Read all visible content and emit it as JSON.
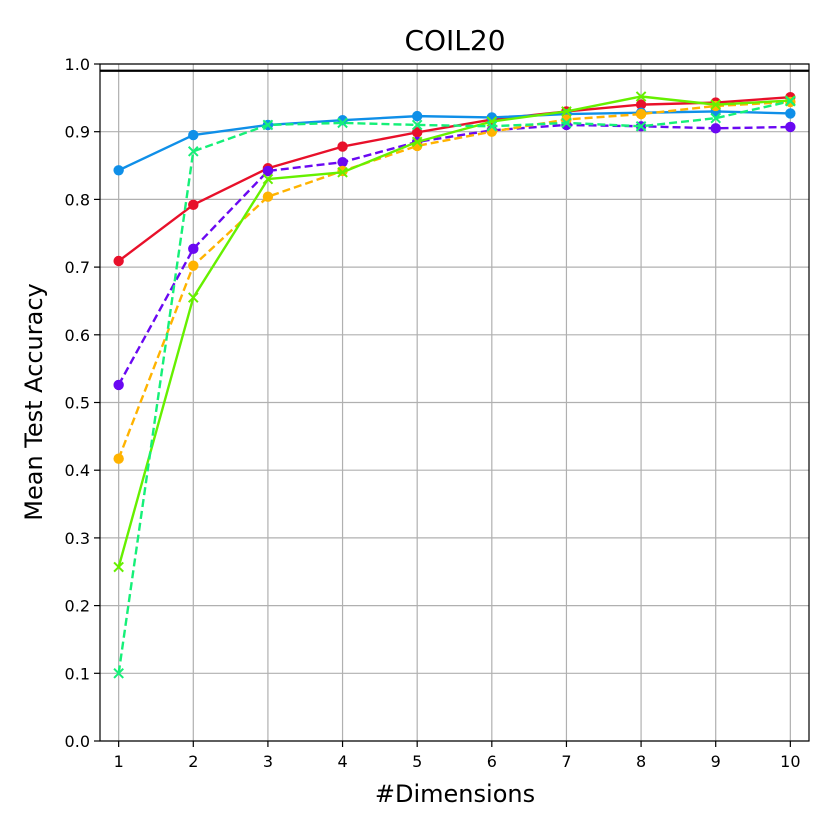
{
  "chart_data": {
    "type": "line",
    "title": "COIL20",
    "xlabel": "#Dimensions",
    "ylabel": "Mean Test Accuracy",
    "x": [
      1,
      2,
      3,
      4,
      5,
      6,
      7,
      8,
      9,
      10
    ],
    "xticks": [
      "1",
      "2",
      "3",
      "4",
      "5",
      "6",
      "7",
      "8",
      "9",
      "10"
    ],
    "yticks": [
      "0.0",
      "0.1",
      "0.2",
      "0.3",
      "0.4",
      "0.5",
      "0.6",
      "0.7",
      "0.8",
      "0.9",
      "1.0"
    ],
    "xlim": [
      0.75,
      10.25
    ],
    "ylim": [
      0.0,
      1.0
    ],
    "grid": true,
    "reference_line": {
      "y": 0.99,
      "color": "#000000"
    },
    "series": [
      {
        "color": "#e8102a",
        "style": "solid",
        "marker": "circle",
        "values": [
          0.709,
          0.792,
          0.846,
          0.878,
          0.899,
          0.918,
          0.93,
          0.94,
          0.943,
          0.951
        ]
      },
      {
        "color": "#0f8fe8",
        "style": "solid",
        "marker": "circle",
        "values": [
          0.843,
          0.895,
          0.91,
          0.917,
          0.923,
          0.921,
          0.926,
          0.928,
          0.93,
          0.927
        ]
      },
      {
        "color": "#6a08f2",
        "style": "dashed",
        "marker": "circle",
        "values": [
          0.526,
          0.727,
          0.842,
          0.855,
          0.885,
          0.902,
          0.91,
          0.908,
          0.905,
          0.907
        ]
      },
      {
        "color": "#ffb300",
        "style": "dashed",
        "marker": "circle",
        "values": [
          0.417,
          0.702,
          0.804,
          0.842,
          0.879,
          0.9,
          0.918,
          0.926,
          0.938,
          0.944
        ]
      },
      {
        "color": "#66f000",
        "style": "solid",
        "marker": "x",
        "values": [
          0.257,
          0.655,
          0.83,
          0.84,
          0.885,
          0.915,
          0.93,
          0.952,
          0.94,
          0.946
        ]
      },
      {
        "color": "#15f078",
        "style": "dashed",
        "marker": "x",
        "values": [
          0.1,
          0.871,
          0.91,
          0.913,
          0.91,
          0.908,
          0.913,
          0.908,
          0.92,
          0.945
        ]
      }
    ]
  }
}
